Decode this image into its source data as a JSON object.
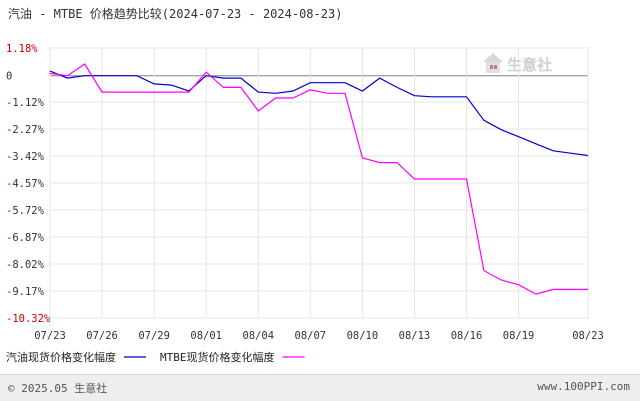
{
  "title": "汽油 - MTBE 价格趋势比较(2024-07-23 - 2024-08-23)",
  "watermark": "生意社",
  "footer": {
    "copyright": "© 2025.05 生意社",
    "site": "www.100PPI.com"
  },
  "colors": {
    "gasoline": "#0000cc",
    "mtbe": "#ff00ff",
    "axis": "#333333",
    "grid": "#e6e6e6",
    "red_label": "#cc0000"
  },
  "chart_data": {
    "type": "line",
    "title": "汽油 - MTBE 价格趋势比较(2024-07-23 - 2024-08-23)",
    "xlabel": "",
    "ylabel": "",
    "x_tick_labels": [
      "07/23",
      "07/26",
      "07/29",
      "08/01",
      "08/04",
      "08/07",
      "08/10",
      "08/13",
      "08/16",
      "08/19",
      "08/23"
    ],
    "y_tick_labels": [
      "1.18%",
      "0",
      "-1.12%",
      "-2.27%",
      "-3.42%",
      "-4.57%",
      "-5.72%",
      "-6.87%",
      "-8.02%",
      "-9.17%",
      "-10.32%"
    ],
    "y_tick_values": [
      1.18,
      0,
      -1.12,
      -2.27,
      -3.42,
      -4.57,
      -5.72,
      -6.87,
      -8.02,
      -9.17,
      -10.32
    ],
    "ylim": [
      -10.32,
      1.18
    ],
    "grid": true,
    "legend_position": "bottom-left",
    "x": [
      "07/23",
      "07/24",
      "07/25",
      "07/26",
      "07/27",
      "07/28",
      "07/29",
      "07/30",
      "07/31",
      "08/01",
      "08/02",
      "08/03",
      "08/04",
      "08/05",
      "08/06",
      "08/07",
      "08/08",
      "08/09",
      "08/10",
      "08/11",
      "08/12",
      "08/13",
      "08/14",
      "08/15",
      "08/16",
      "08/17",
      "08/18",
      "08/19",
      "08/20",
      "08/21",
      "08/22",
      "08/23"
    ],
    "series": [
      {
        "name": "汽油现货价格变化幅度",
        "color": "#0000cc",
        "values": [
          0.2,
          -0.1,
          0.0,
          0.0,
          0.0,
          0.0,
          -0.35,
          -0.4,
          -0.65,
          0.0,
          -0.1,
          -0.1,
          -0.7,
          -0.75,
          -0.65,
          -0.3,
          -0.3,
          -0.3,
          -0.65,
          -0.1,
          -0.5,
          -0.85,
          -0.9,
          -0.9,
          -0.9,
          -1.9,
          -2.3,
          -2.6,
          -2.9,
          -3.2,
          -3.3,
          -3.4
        ]
      },
      {
        "name": "MTBE现货价格变化幅度",
        "color": "#ff00ff",
        "values": [
          0.1,
          0.0,
          0.5,
          -0.7,
          -0.7,
          -0.7,
          -0.7,
          -0.7,
          -0.7,
          0.15,
          -0.5,
          -0.5,
          -1.5,
          -0.95,
          -0.95,
          -0.6,
          -0.75,
          -0.75,
          -3.5,
          -3.7,
          -3.7,
          -4.4,
          -4.4,
          -4.4,
          -4.4,
          -8.3,
          -8.7,
          -8.9,
          -9.3,
          -9.1,
          -9.1,
          -9.1
        ]
      }
    ]
  }
}
